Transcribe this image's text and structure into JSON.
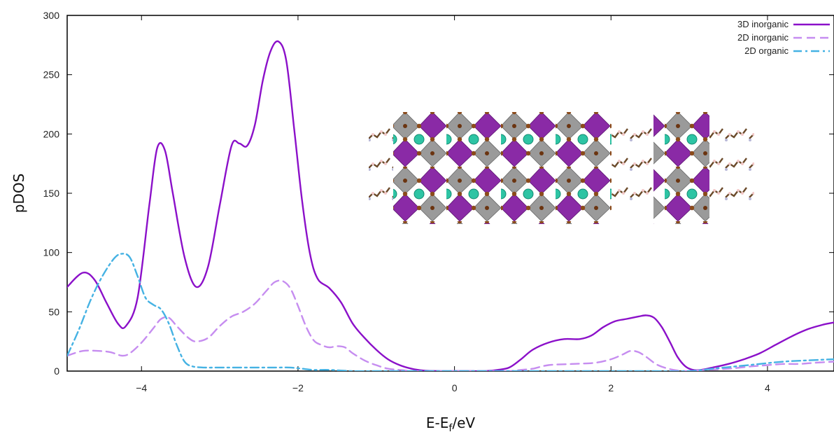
{
  "chart_data": {
    "type": "line",
    "xlabel": "E-E",
    "xlabel_sub": "f",
    "xlabel_unit": "/eV",
    "ylabel": "pDOS",
    "xlim": [
      -4.95,
      4.85
    ],
    "ylim": [
      0,
      300
    ],
    "xticks": [
      -4,
      -2,
      0,
      2,
      4
    ],
    "yticks": [
      0,
      50,
      100,
      150,
      200,
      250,
      300
    ],
    "legend_position": "top-right",
    "grid": false,
    "series": [
      {
        "name": "3D inorganic",
        "color": "#8b10c9",
        "dash": "solid",
        "x": [
          -4.95,
          -4.75,
          -4.6,
          -4.45,
          -4.3,
          -4.2,
          -4.05,
          -3.9,
          -3.8,
          -3.7,
          -3.6,
          -3.45,
          -3.3,
          -3.15,
          -3.0,
          -2.85,
          -2.75,
          -2.65,
          -2.55,
          -2.45,
          -2.35,
          -2.25,
          -2.15,
          -2.05,
          -1.95,
          -1.85,
          -1.75,
          -1.6,
          -1.45,
          -1.3,
          -1.15,
          -1.0,
          -0.85,
          -0.7,
          -0.55,
          -0.4,
          -0.2,
          0.0,
          0.2,
          0.4,
          0.55,
          0.7,
          0.85,
          1.0,
          1.2,
          1.4,
          1.6,
          1.75,
          1.9,
          2.05,
          2.2,
          2.35,
          2.45,
          2.55,
          2.65,
          2.75,
          2.85,
          2.95,
          3.05,
          3.15,
          3.3,
          3.5,
          3.7,
          3.9,
          4.1,
          4.3,
          4.5,
          4.7,
          4.85
        ],
        "y": [
          71,
          83,
          77,
          58,
          40,
          38,
          62,
          140,
          188,
          186,
          150,
          96,
          71,
          88,
          140,
          190,
          192,
          190,
          208,
          245,
          270,
          278,
          262,
          205,
          145,
          100,
          78,
          70,
          58,
          40,
          28,
          18,
          10,
          5,
          2,
          0.5,
          0,
          0,
          0,
          0,
          1,
          3,
          10,
          18,
          24,
          27,
          27,
          30,
          37,
          42,
          44,
          46,
          47,
          45,
          37,
          25,
          12,
          4,
          1,
          1,
          3,
          6,
          10,
          15,
          22,
          29,
          35,
          39,
          41
        ]
      },
      {
        "name": "2D inorganic",
        "color": "#c68df0",
        "dash": "dashed",
        "x": [
          -4.95,
          -4.75,
          -4.55,
          -4.4,
          -4.25,
          -4.15,
          -4.0,
          -3.85,
          -3.75,
          -3.65,
          -3.55,
          -3.4,
          -3.3,
          -3.15,
          -3.0,
          -2.85,
          -2.7,
          -2.55,
          -2.4,
          -2.3,
          -2.2,
          -2.1,
          -2.0,
          -1.9,
          -1.8,
          -1.7,
          -1.6,
          -1.5,
          -1.4,
          -1.3,
          -1.15,
          -1.0,
          -0.85,
          -0.7,
          -0.5,
          -0.2,
          0.2,
          0.5,
          0.7,
          0.85,
          1.0,
          1.2,
          1.5,
          1.8,
          2.0,
          2.15,
          2.25,
          2.35,
          2.45,
          2.6,
          2.8,
          3.0,
          3.2,
          3.5,
          3.8,
          4.0,
          4.2,
          4.4,
          4.6,
          4.85
        ],
        "y": [
          13,
          17,
          17,
          16,
          13,
          15,
          24,
          36,
          44,
          45,
          38,
          28,
          25,
          28,
          38,
          46,
          50,
          57,
          68,
          75,
          76,
          70,
          55,
          38,
          26,
          22,
          20,
          21,
          20,
          15,
          9,
          5,
          2,
          1,
          0,
          0,
          0,
          0,
          0,
          1,
          2,
          5,
          6,
          7,
          10,
          14,
          17,
          16,
          12,
          5,
          1,
          0,
          1,
          2,
          4,
          5,
          6,
          6,
          7,
          8
        ]
      },
      {
        "name": "2D organic",
        "color": "#45b2e3",
        "dash": "dashdot",
        "x": [
          -4.95,
          -4.8,
          -4.65,
          -4.5,
          -4.35,
          -4.25,
          -4.15,
          -4.05,
          -3.95,
          -3.85,
          -3.75,
          -3.65,
          -3.55,
          -3.45,
          -3.35,
          -3.2,
          -3.0,
          -2.8,
          -2.6,
          -2.4,
          -2.25,
          -2.1,
          -1.95,
          -1.8,
          -1.6,
          -1.3,
          -1.0,
          -0.5,
          0.0,
          0.5,
          1.0,
          1.5,
          2.0,
          2.5,
          3.0,
          3.3,
          3.6,
          3.9,
          4.2,
          4.5,
          4.85
        ],
        "y": [
          13,
          35,
          60,
          80,
          95,
          99,
          96,
          80,
          62,
          56,
          52,
          40,
          22,
          8,
          4,
          3,
          3,
          3,
          3,
          3,
          3,
          3,
          2,
          1,
          1,
          0,
          0,
          0,
          0,
          0,
          0,
          0,
          0,
          0,
          0,
          2,
          4,
          6,
          8,
          9,
          10
        ]
      }
    ]
  }
}
